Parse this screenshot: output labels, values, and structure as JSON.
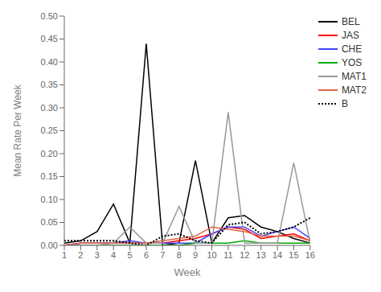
{
  "chart_data": {
    "type": "line",
    "xlabel": "Week",
    "ylabel": "Mean Rate Per Week",
    "x": [
      1,
      2,
      3,
      4,
      5,
      6,
      7,
      8,
      9,
      10,
      11,
      12,
      13,
      14,
      15,
      16
    ],
    "xlim": [
      1,
      16
    ],
    "xticks": [
      1,
      2,
      3,
      4,
      5,
      6,
      7,
      8,
      9,
      10,
      11,
      12,
      13,
      14,
      15,
      16
    ],
    "ylim": [
      0.0,
      0.5
    ],
    "yticks": [
      {
        "value": 0.0,
        "label": "0.00"
      },
      {
        "value": 0.05,
        "label": "0.05"
      },
      {
        "value": 0.1,
        "label": "0.10"
      },
      {
        "value": 0.15,
        "label": "0.15"
      },
      {
        "value": 0.2,
        "label": "0.20"
      },
      {
        "value": 0.25,
        "label": "0.25"
      },
      {
        "value": 0.3,
        "label": "0.30"
      },
      {
        "value": 0.35,
        "label": "0.35"
      },
      {
        "value": 0.4,
        "label": "0.40"
      },
      {
        "value": 0.45,
        "label": "0.45"
      },
      {
        "value": 0.5,
        "label": "0.50"
      }
    ],
    "grid": false,
    "legend": "upper right",
    "series": [
      {
        "name": "BEL",
        "color": "#000000",
        "line_style": "solid",
        "values": [
          0.005,
          0.01,
          0.03,
          0.09,
          0.005,
          0.44,
          0.0,
          0.005,
          0.185,
          0.005,
          0.06,
          0.065,
          0.04,
          0.03,
          0.015,
          0.005
        ]
      },
      {
        "name": "JAS",
        "color": "#ff0000",
        "line_style": "solid",
        "values": [
          0.0,
          0.005,
          0.005,
          0.005,
          0.005,
          0.005,
          0.005,
          0.01,
          0.015,
          0.025,
          0.04,
          0.035,
          0.015,
          0.02,
          0.025,
          0.01
        ]
      },
      {
        "name": "CHE",
        "color": "#4444ff",
        "line_style": "solid",
        "values": [
          0.0,
          0.005,
          0.005,
          0.005,
          0.01,
          0.005,
          0.005,
          0.005,
          0.005,
          0.025,
          0.04,
          0.04,
          0.02,
          0.03,
          0.04,
          0.015
        ]
      },
      {
        "name": "YOS",
        "color": "#00aa00",
        "line_style": "solid",
        "values": [
          0.0,
          0.0,
          0.0,
          0.0,
          0.0,
          0.0,
          0.0,
          0.0,
          0.005,
          0.005,
          0.005,
          0.01,
          0.005,
          0.005,
          0.005,
          0.005
        ]
      },
      {
        "name": "MAT1",
        "color": "#999999",
        "line_style": "solid",
        "values": [
          0.0,
          0.0,
          0.0,
          0.005,
          0.04,
          0.005,
          0.005,
          0.085,
          0.005,
          0.005,
          0.29,
          0.005,
          0.005,
          0.005,
          0.18,
          0.005
        ]
      },
      {
        "name": "MAT2",
        "color": "#dd6644",
        "line_style": "solid",
        "values": [
          0.0,
          0.005,
          0.005,
          0.005,
          0.005,
          0.005,
          0.01,
          0.015,
          0.02,
          0.04,
          0.035,
          0.03,
          0.02,
          0.02,
          0.02,
          0.01
        ]
      },
      {
        "name": "B",
        "color": "#000000",
        "line_style": "dotted",
        "values": [
          0.01,
          0.01,
          0.01,
          0.01,
          0.005,
          0.0,
          0.02,
          0.025,
          0.01,
          0.005,
          0.045,
          0.05,
          0.025,
          0.03,
          0.04,
          0.06
        ]
      }
    ]
  }
}
